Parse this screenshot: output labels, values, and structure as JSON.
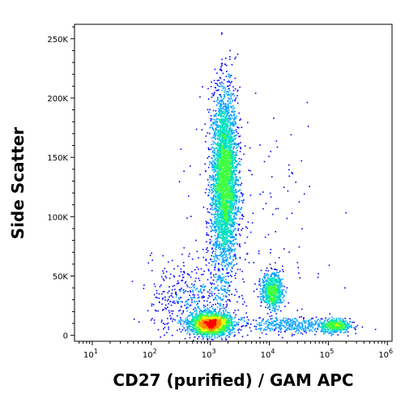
{
  "chart_data": {
    "type": "scatter",
    "subtype": "flow-cytometry-density-dot-plot",
    "xlabel": "CD27 (purified) / GAM APC",
    "ylabel": "Side Scatter",
    "x_scale": "log",
    "xlim": [
      5,
      1200000
    ],
    "ylim": [
      -5000,
      262144
    ],
    "x_ticks": [
      {
        "value": 10,
        "base": "10",
        "exp": "1"
      },
      {
        "value": 100,
        "base": "10",
        "exp": "2"
      },
      {
        "value": 1000,
        "base": "10",
        "exp": "3"
      },
      {
        "value": 10000,
        "base": "10",
        "exp": "4"
      },
      {
        "value": 100000,
        "base": "10",
        "exp": "5"
      },
      {
        "value": 1000000,
        "base": "10",
        "exp": "6"
      }
    ],
    "y_ticks": [
      {
        "value": 0,
        "label": "0"
      },
      {
        "value": 50000,
        "label": "50K"
      },
      {
        "value": 100000,
        "label": "100K"
      },
      {
        "value": 150000,
        "label": "150K"
      },
      {
        "value": 200000,
        "label": "200K"
      },
      {
        "value": 250000,
        "label": "250K"
      }
    ],
    "color_scale": [
      "#0000ff",
      "#00a0ff",
      "#00e0c0",
      "#40ff40",
      "#e0ff00",
      "#ff9000",
      "#ff0000"
    ],
    "populations": [
      {
        "center_x": 1700,
        "center_y": 130000,
        "spread_log_x": 0.11,
        "spread_y": 38000,
        "count": 3800
      },
      {
        "center_x": 1000,
        "center_y": 10000,
        "spread_log_x": 0.17,
        "spread_y": 4500,
        "count": 2200
      },
      {
        "center_x": 11000,
        "center_y": 38000,
        "spread_log_x": 0.09,
        "spread_y": 7500,
        "count": 700
      },
      {
        "center_x": 130000,
        "center_y": 8500,
        "spread_log_x": 0.12,
        "spread_y": 3000,
        "count": 450
      },
      {
        "center_x": 20000,
        "center_y": 9000,
        "spread_log_x": 0.45,
        "spread_y": 3500,
        "count": 400
      },
      {
        "center_x": 500,
        "center_y": 30000,
        "spread_log_x": 0.35,
        "spread_y": 18000,
        "count": 500
      },
      {
        "center_x": 5000,
        "center_y": 80000,
        "spread_log_x": 0.7,
        "spread_y": 60000,
        "count": 180
      }
    ]
  }
}
